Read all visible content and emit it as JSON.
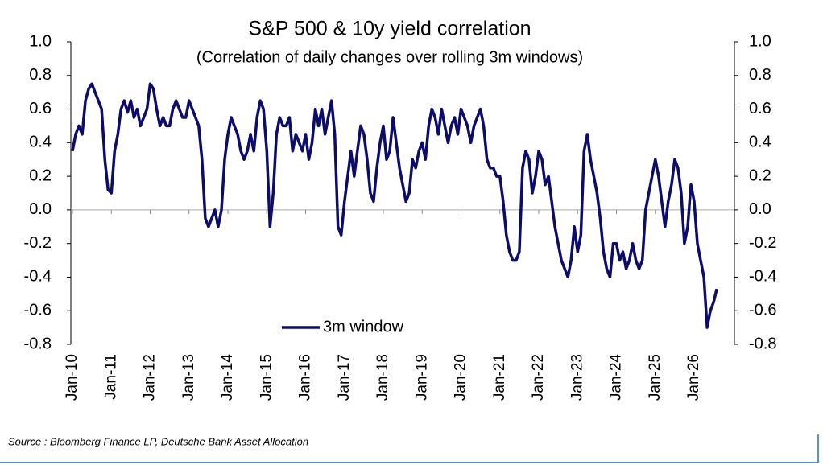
{
  "chart_data": {
    "type": "line",
    "title": "S&P 500 & 10y yield correlation",
    "subtitle": "(Correlation of daily changes over rolling 3m windows)",
    "source": "Source : Bloomberg Finance LP, Deutsche Bank Asset Allocation",
    "categories": [
      "Jan-10",
      null,
      null,
      null,
      null,
      null,
      null,
      null,
      null,
      null,
      null,
      null,
      "Jan-11",
      null,
      null,
      null,
      null,
      null,
      null,
      null,
      null,
      null,
      null,
      null,
      "Jan-12",
      null,
      null,
      null,
      null,
      null,
      null,
      null,
      null,
      null,
      null,
      null,
      "Jan-13",
      null,
      null,
      null,
      null,
      null,
      null,
      null,
      null,
      null,
      null,
      null,
      "Jan-14",
      null,
      null,
      null,
      null,
      null,
      null,
      null,
      null,
      null,
      null,
      null,
      "Jan-15",
      null,
      null,
      null,
      null,
      null,
      null,
      null,
      null,
      null,
      null,
      null,
      "Jan-16",
      null,
      null,
      null,
      null,
      null,
      null,
      null,
      null,
      null,
      null,
      null,
      "Jan-17",
      null,
      null,
      null,
      null,
      null,
      null,
      null,
      null,
      null,
      null,
      null,
      "Jan-18",
      null,
      null,
      null,
      null,
      null,
      null,
      null,
      null,
      null,
      null,
      null,
      "Jan-19",
      null,
      null,
      null,
      null,
      null,
      null,
      null,
      null,
      null,
      null,
      null,
      "Jan-20",
      null,
      null,
      null,
      null,
      null,
      null,
      null,
      null,
      null,
      null,
      null,
      "Jan-21",
      null,
      null,
      null,
      null,
      null,
      null,
      null,
      null,
      null,
      null,
      null,
      "Jan-22",
      null,
      null,
      null,
      null,
      null,
      null,
      null,
      null,
      null,
      null,
      null,
      "Jan-23",
      null,
      null,
      null,
      null,
      null,
      null,
      null,
      null,
      null,
      null,
      null,
      "Jan-24",
      null,
      null,
      null,
      null,
      null,
      null,
      null,
      null,
      null,
      null,
      null,
      "Jan-25",
      null,
      null,
      null,
      null,
      null,
      null,
      null,
      null,
      null,
      null,
      null,
      "Jan-26",
      null,
      null,
      null,
      null,
      null,
      null,
      null
    ],
    "series": [
      {
        "name": "3m window",
        "color": "#0c0c6b",
        "values": [
          0.35,
          0.45,
          0.5,
          0.45,
          0.65,
          0.72,
          0.75,
          0.7,
          0.65,
          0.6,
          0.3,
          0.12,
          0.1,
          0.35,
          0.45,
          0.6,
          0.65,
          0.58,
          0.65,
          0.55,
          0.6,
          0.5,
          0.55,
          0.6,
          0.75,
          0.72,
          0.6,
          0.5,
          0.55,
          0.5,
          0.5,
          0.6,
          0.65,
          0.6,
          0.55,
          0.55,
          0.65,
          0.6,
          0.55,
          0.5,
          0.3,
          -0.05,
          -0.1,
          -0.05,
          0.0,
          -0.1,
          0.0,
          0.3,
          0.45,
          0.55,
          0.5,
          0.45,
          0.35,
          0.3,
          0.35,
          0.45,
          0.35,
          0.55,
          0.65,
          0.6,
          0.35,
          -0.1,
          0.1,
          0.45,
          0.55,
          0.5,
          0.5,
          0.55,
          0.35,
          0.45,
          0.4,
          0.35,
          0.45,
          0.3,
          0.4,
          0.6,
          0.5,
          0.6,
          0.45,
          0.55,
          0.65,
          0.45,
          -0.1,
          -0.15,
          0.05,
          0.2,
          0.35,
          0.2,
          0.35,
          0.5,
          0.45,
          0.3,
          0.1,
          0.05,
          0.25,
          0.4,
          0.5,
          0.3,
          0.35,
          0.55,
          0.4,
          0.25,
          0.15,
          0.05,
          0.1,
          0.3,
          0.25,
          0.35,
          0.4,
          0.3,
          0.5,
          0.6,
          0.55,
          0.45,
          0.6,
          0.5,
          0.4,
          0.5,
          0.55,
          0.45,
          0.6,
          0.55,
          0.5,
          0.4,
          0.5,
          0.55,
          0.6,
          0.5,
          0.3,
          0.25,
          0.25,
          0.2,
          0.2,
          0.05,
          -0.15,
          -0.25,
          -0.3,
          -0.3,
          -0.25,
          0.25,
          0.35,
          0.3,
          0.1,
          0.2,
          0.35,
          0.3,
          0.15,
          0.2,
          0.05,
          -0.1,
          -0.2,
          -0.3,
          -0.35,
          -0.4,
          -0.3,
          -0.1,
          -0.25,
          -0.15,
          0.35,
          0.45,
          0.3,
          0.2,
          0.1,
          -0.05,
          -0.25,
          -0.35,
          -0.4,
          -0.2,
          -0.2,
          -0.3,
          -0.25,
          -0.35,
          -0.3,
          -0.2,
          -0.3,
          -0.35,
          -0.3,
          0.0,
          0.1,
          0.2,
          0.3,
          0.2,
          0.05,
          -0.1,
          0.05,
          0.15,
          0.3,
          0.25,
          0.1,
          -0.2,
          -0.1,
          0.15,
          0.05,
          -0.2,
          -0.3,
          -0.4,
          -0.7,
          -0.6,
          -0.55,
          -0.47
        ]
      }
    ],
    "ylim": [
      -0.8,
      1.0
    ],
    "yticks": [
      {
        "value": 1.0,
        "label": "1.0"
      },
      0.8,
      0.6,
      0.4,
      0.2,
      {
        "value": 0,
        "label": "0.0"
      },
      -0.2,
      -0.4,
      -0.6,
      -0.8
    ],
    "y2lim": [
      -0.8,
      1.0
    ],
    "y2ticks": [
      {
        "value": 1.0,
        "label": "1.0"
      },
      0.8,
      0.6,
      0.4,
      0.2,
      {
        "value": 0,
        "label": "0.0"
      },
      -0.2,
      -0.4,
      -0.6,
      -0.8
    ]
  }
}
